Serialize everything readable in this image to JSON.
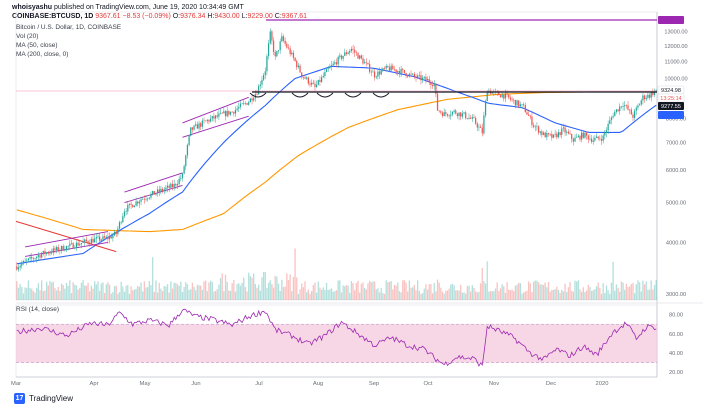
{
  "header": {
    "user": "whoisyashu",
    "published_text": "published on TradingView.com, June 19, 2020 10:34:49 GMT",
    "symbol": "COINBASE:BTCUSD, 1D",
    "last": "9367.61",
    "change": "−8.53 (−0.09%)",
    "o_label": "O:",
    "o": "9376.34",
    "h_label": "H:",
    "h": "9430.00",
    "l_label": "L:",
    "l": "9229.00",
    "c_label": "C:",
    "c": "9367.61"
  },
  "indicators": {
    "title": "Bitcoin / U.S. Dollar, 1D, COINBASE",
    "vol": "Vol (20)",
    "ma50": "MA (50, close)",
    "ma200": "MA (200, close, 0)",
    "rsi": "RSI (14, close)"
  },
  "brand": {
    "name": "TradingView",
    "logo_glyph": "17"
  },
  "colors": {
    "up": "#26a69a",
    "down": "#ef5350",
    "ma50": "#2962ff",
    "ma200": "#ff9800",
    "resistance": "#9c27b0",
    "support": "#131722",
    "rsi_band": "#f3c6dc",
    "rsi_line": "#9c27b0",
    "trendline": "#e53935"
  },
  "chart_data": {
    "type": "candlestick",
    "title": "Bitcoin / U.S. Dollar, 1D, COINBASE",
    "x_ticks": [
      "Mar",
      "Apr",
      "May",
      "Jun",
      "Jul",
      "Aug",
      "Sep",
      "Oct",
      "Nov",
      "Dec",
      "2020"
    ],
    "y_ticks": [
      3000,
      4000,
      5000,
      6000,
      7000,
      8000,
      10000,
      11000,
      12000,
      13000
    ],
    "y_scale": "log",
    "ylim": [
      2900,
      14500
    ],
    "price_labels": [
      {
        "text": "13868.44",
        "value": 13868.44,
        "color": "#9c27b0"
      },
      {
        "text": "9324.98",
        "value": 9324.98,
        "color": "#131722"
      },
      {
        "text": "13:25:14",
        "value": 9205,
        "color": "#ef5350"
      },
      {
        "text": "9277.55",
        "value": 9277.55,
        "color": "#ffffff"
      },
      {
        "text": "8614.60",
        "value": 8614.6,
        "color": "#2962ff"
      }
    ],
    "horizontal_levels": [
      {
        "name": "",
        "value": 13868.44,
        "from": "Jun",
        "to": "end"
      },
      {
        "name": "",
        "value": 9324.98,
        "from": "Jun",
        "to": "end"
      }
    ],
    "close_anchors": [
      [
        0,
        3500
      ],
      [
        15,
        3750
      ],
      [
        30,
        3900
      ],
      [
        45,
        4050
      ],
      [
        55,
        4100
      ],
      [
        60,
        4200
      ],
      [
        65,
        4800
      ],
      [
        75,
        5100
      ],
      [
        85,
        5300
      ],
      [
        95,
        5500
      ],
      [
        100,
        5800
      ],
      [
        105,
        7500
      ],
      [
        115,
        7900
      ],
      [
        125,
        8200
      ],
      [
        130,
        8300
      ],
      [
        140,
        8800
      ],
      [
        145,
        9300
      ],
      [
        150,
        10500
      ],
      [
        153,
        12800
      ],
      [
        156,
        11200
      ],
      [
        160,
        12500
      ],
      [
        168,
        11000
      ],
      [
        172,
        10200
      ],
      [
        180,
        9500
      ],
      [
        188,
        10500
      ],
      [
        195,
        11200
      ],
      [
        202,
        11800
      ],
      [
        210,
        10900
      ],
      [
        216,
        10200
      ],
      [
        224,
        10600
      ],
      [
        232,
        10400
      ],
      [
        240,
        10100
      ],
      [
        248,
        9900
      ],
      [
        252,
        9700
      ],
      [
        254,
        8400
      ],
      [
        258,
        8200
      ],
      [
        264,
        8300
      ],
      [
        270,
        8150
      ],
      [
        276,
        7900
      ],
      [
        281,
        7400
      ],
      [
        284,
        9400
      ],
      [
        288,
        9200
      ],
      [
        294,
        9100
      ],
      [
        300,
        8800
      ],
      [
        306,
        8500
      ],
      [
        312,
        7700
      ],
      [
        318,
        7300
      ],
      [
        324,
        7200
      ],
      [
        330,
        7500
      ],
      [
        336,
        7100
      ],
      [
        342,
        7300
      ],
      [
        348,
        7100
      ],
      [
        354,
        7200
      ],
      [
        360,
        8200
      ],
      [
        366,
        8700
      ],
      [
        372,
        8100
      ],
      [
        378,
        9000
      ],
      [
        382,
        9100
      ],
      [
        386,
        9367
      ]
    ],
    "ma50_anchors": [
      [
        0,
        3550
      ],
      [
        40,
        3760
      ],
      [
        80,
        4700
      ],
      [
        100,
        5300
      ],
      [
        125,
        7000
      ],
      [
        150,
        8600
      ],
      [
        168,
        10000
      ],
      [
        190,
        10700
      ],
      [
        215,
        10600
      ],
      [
        240,
        10100
      ],
      [
        265,
        9300
      ],
      [
        285,
        8700
      ],
      [
        305,
        8500
      ],
      [
        325,
        7800
      ],
      [
        345,
        7400
      ],
      [
        365,
        7400
      ],
      [
        386,
        8614
      ]
    ],
    "ma200_anchors": [
      [
        0,
        4800
      ],
      [
        40,
        4300
      ],
      [
        80,
        4250
      ],
      [
        100,
        4300
      ],
      [
        125,
        4700
      ],
      [
        150,
        5600
      ],
      [
        170,
        6500
      ],
      [
        200,
        7600
      ],
      [
        230,
        8400
      ],
      [
        260,
        8900
      ],
      [
        290,
        9150
      ],
      [
        320,
        9250
      ],
      [
        350,
        9280
      ],
      [
        386,
        9277
      ]
    ],
    "volume": "Vol (20)",
    "rsi": {
      "name": "RSI (14, close)",
      "band": [
        30,
        70
      ],
      "y_ticks": [
        20,
        40,
        60,
        80
      ],
      "anchors": [
        [
          0,
          62
        ],
        [
          15,
          66
        ],
        [
          30,
          58
        ],
        [
          45,
          71
        ],
        [
          55,
          69
        ],
        [
          62,
          82
        ],
        [
          70,
          70
        ],
        [
          80,
          74
        ],
        [
          92,
          69
        ],
        [
          100,
          85
        ],
        [
          108,
          78
        ],
        [
          118,
          75
        ],
        [
          130,
          69
        ],
        [
          140,
          78
        ],
        [
          150,
          84
        ],
        [
          156,
          64
        ],
        [
          166,
          58
        ],
        [
          176,
          49
        ],
        [
          186,
          58
        ],
        [
          196,
          72
        ],
        [
          206,
          60
        ],
        [
          216,
          48
        ],
        [
          226,
          56
        ],
        [
          236,
          48
        ],
        [
          246,
          44
        ],
        [
          252,
          35
        ],
        [
          258,
          28
        ],
        [
          266,
          36
        ],
        [
          276,
          34
        ],
        [
          281,
          26
        ],
        [
          284,
          68
        ],
        [
          290,
          64
        ],
        [
          300,
          56
        ],
        [
          310,
          40
        ],
        [
          318,
          33
        ],
        [
          326,
          44
        ],
        [
          334,
          37
        ],
        [
          342,
          47
        ],
        [
          350,
          38
        ],
        [
          360,
          62
        ],
        [
          368,
          71
        ],
        [
          374,
          55
        ],
        [
          380,
          67
        ],
        [
          386,
          67
        ]
      ]
    }
  }
}
